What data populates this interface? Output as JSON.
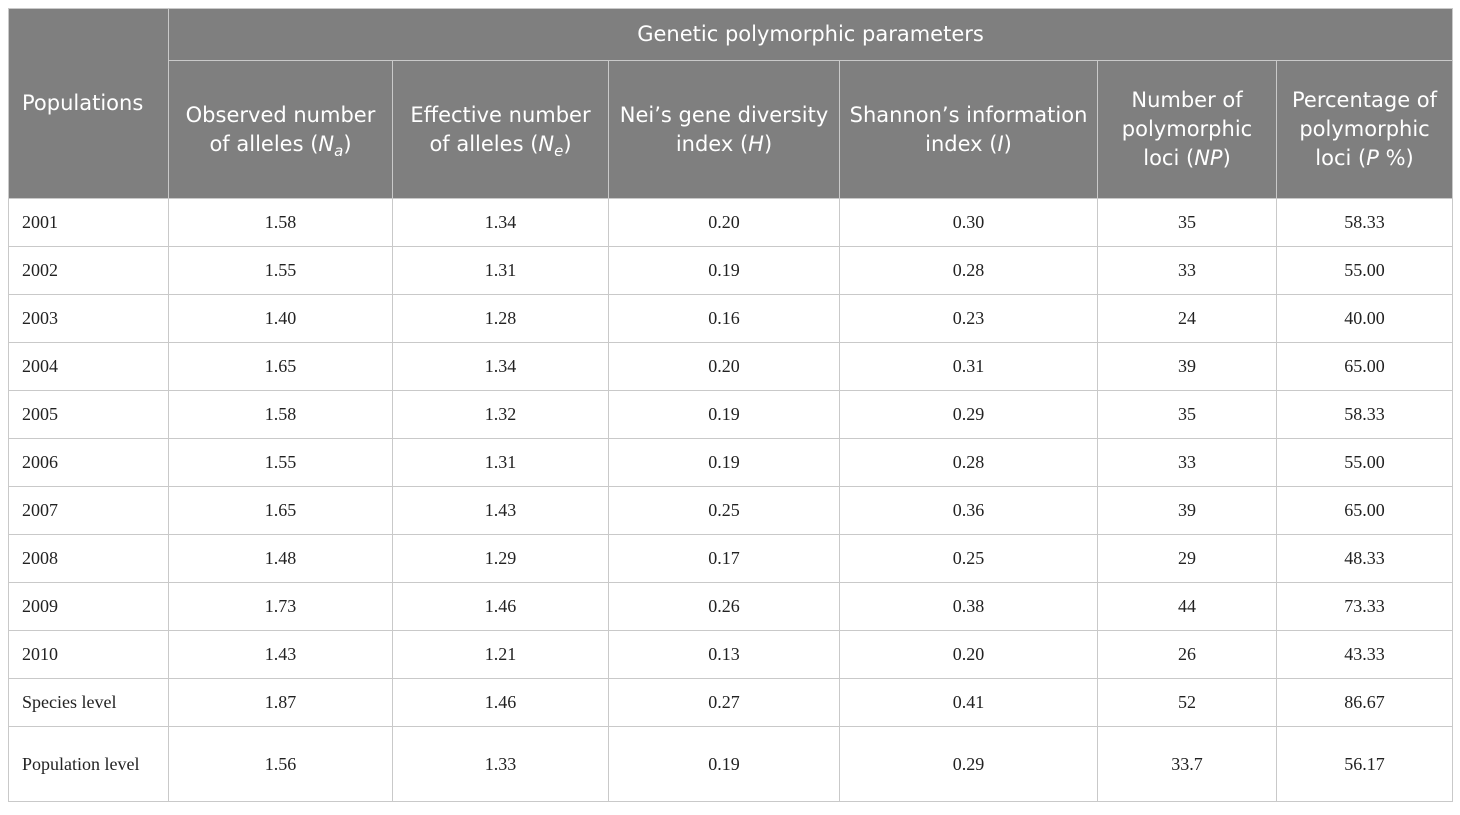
{
  "header": {
    "populations": "Populations",
    "group": "Genetic polymorphic parameters",
    "na": {
      "text": "Observed number of alleles",
      "sym": "N",
      "sub": "a",
      "close": ")"
    },
    "ne": {
      "text": "Effective number of alleles",
      "sym": "N",
      "sub": "e",
      "close": ")"
    },
    "h": {
      "text": "Nei’s gene diversity index",
      "sym": "H",
      "close": ")"
    },
    "i": {
      "text": "Shannon’s information index",
      "sym": "I",
      "close": ")"
    },
    "np": {
      "text": "Number of polymorphic loci",
      "sym": "NP",
      "close": ")"
    },
    "p": {
      "text": "Percentage of polymorphic loci",
      "sym": "P",
      "close": " %)"
    }
  },
  "rows": [
    {
      "population": "2001",
      "na": "1.58",
      "ne": "1.34",
      "h": "0.20",
      "i": "0.30",
      "np": "35",
      "p": "58.33"
    },
    {
      "population": "2002",
      "na": "1.55",
      "ne": "1.31",
      "h": "0.19",
      "i": "0.28",
      "np": "33",
      "p": "55.00"
    },
    {
      "population": "2003",
      "na": "1.40",
      "ne": "1.28",
      "h": "0.16",
      "i": "0.23",
      "np": "24",
      "p": "40.00"
    },
    {
      "population": "2004",
      "na": "1.65",
      "ne": "1.34",
      "h": "0.20",
      "i": "0.31",
      "np": "39",
      "p": "65.00"
    },
    {
      "population": "2005",
      "na": "1.58",
      "ne": "1.32",
      "h": "0.19",
      "i": "0.29",
      "np": "35",
      "p": "58.33"
    },
    {
      "population": "2006",
      "na": "1.55",
      "ne": "1.31",
      "h": "0.19",
      "i": "0.28",
      "np": "33",
      "p": "55.00"
    },
    {
      "population": "2007",
      "na": "1.65",
      "ne": "1.43",
      "h": "0.25",
      "i": "0.36",
      "np": "39",
      "p": "65.00"
    },
    {
      "population": "2008",
      "na": "1.48",
      "ne": "1.29",
      "h": "0.17",
      "i": "0.25",
      "np": "29",
      "p": "48.33"
    },
    {
      "population": "2009",
      "na": "1.73",
      "ne": "1.46",
      "h": "0.26",
      "i": "0.38",
      "np": "44",
      "p": "73.33"
    },
    {
      "population": "2010",
      "na": "1.43",
      "ne": "1.21",
      "h": "0.13",
      "i": "0.20",
      "np": "26",
      "p": "43.33"
    },
    {
      "population": "Species level",
      "na": "1.87",
      "ne": "1.46",
      "h": "0.27",
      "i": "0.41",
      "np": "52",
      "p": "86.67"
    },
    {
      "population": "Population level",
      "na": "1.56",
      "ne": "1.33",
      "h": "0.19",
      "i": "0.29",
      "np": "33.7",
      "p": "56.17"
    }
  ],
  "colors": {
    "header_bg": "#7f7f7f",
    "header_text": "#ffffff",
    "border": "#c9c9c9"
  }
}
